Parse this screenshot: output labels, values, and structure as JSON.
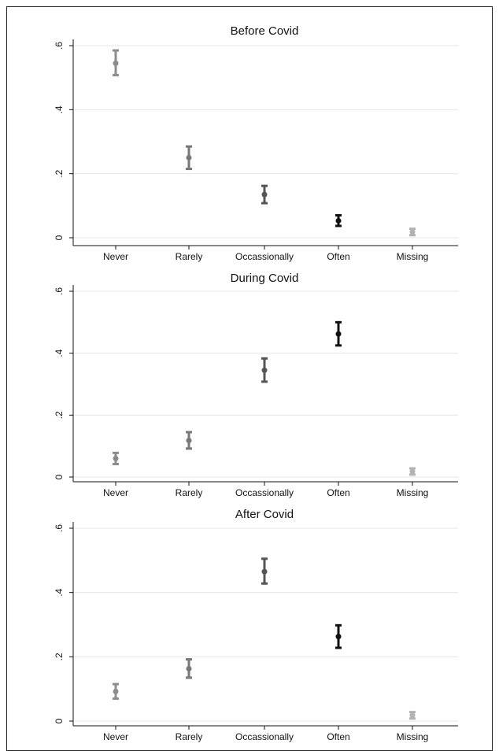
{
  "chart_data": [
    {
      "type": "scatter",
      "title": "Before Covid",
      "categories": [
        "Never",
        "Rarely",
        "Occassionally",
        "Often",
        "Missing"
      ],
      "yticks": [
        ".6",
        ".4",
        ".2",
        "0"
      ],
      "ylim": [
        0,
        0.6
      ],
      "grid": true,
      "points": [
        {
          "category": "Never",
          "value": 0.545,
          "lower": 0.508,
          "upper": 0.585,
          "color": "#8c8c8c"
        },
        {
          "category": "Rarely",
          "value": 0.25,
          "lower": 0.215,
          "upper": 0.285,
          "color": "#777777"
        },
        {
          "category": "Occassionally",
          "value": 0.135,
          "lower": 0.108,
          "upper": 0.162,
          "color": "#555555"
        },
        {
          "category": "Often",
          "value": 0.053,
          "lower": 0.037,
          "upper": 0.07,
          "color": "#111111"
        },
        {
          "category": "Missing",
          "value": 0.018,
          "lower": 0.008,
          "upper": 0.028,
          "color": "#b3b3b3"
        }
      ]
    },
    {
      "type": "scatter",
      "title": "During Covid",
      "categories": [
        "Never",
        "Rarely",
        "Occassionally",
        "Often",
        "Missing"
      ],
      "yticks": [
        ".6",
        ".4",
        ".2",
        "0"
      ],
      "ylim": [
        0,
        0.6
      ],
      "grid": true,
      "points": [
        {
          "category": "Never",
          "value": 0.06,
          "lower": 0.042,
          "upper": 0.078,
          "color": "#8c8c8c"
        },
        {
          "category": "Rarely",
          "value": 0.118,
          "lower": 0.092,
          "upper": 0.145,
          "color": "#777777"
        },
        {
          "category": "Occassionally",
          "value": 0.345,
          "lower": 0.308,
          "upper": 0.383,
          "color": "#555555"
        },
        {
          "category": "Often",
          "value": 0.462,
          "lower": 0.425,
          "upper": 0.5,
          "color": "#111111"
        },
        {
          "category": "Missing",
          "value": 0.018,
          "lower": 0.008,
          "upper": 0.028,
          "color": "#b3b3b3"
        }
      ]
    },
    {
      "type": "scatter",
      "title": "After Covid",
      "categories": [
        "Never",
        "Rarely",
        "Occassionally",
        "Often",
        "Missing"
      ],
      "yticks": [
        ".6",
        ".4",
        ".2",
        "0"
      ],
      "ylim": [
        0,
        0.6
      ],
      "grid": true,
      "points": [
        {
          "category": "Never",
          "value": 0.092,
          "lower": 0.07,
          "upper": 0.115,
          "color": "#8c8c8c"
        },
        {
          "category": "Rarely",
          "value": 0.163,
          "lower": 0.135,
          "upper": 0.192,
          "color": "#777777"
        },
        {
          "category": "Occassionally",
          "value": 0.465,
          "lower": 0.428,
          "upper": 0.505,
          "color": "#555555"
        },
        {
          "category": "Often",
          "value": 0.263,
          "lower": 0.228,
          "upper": 0.298,
          "color": "#111111"
        },
        {
          "category": "Missing",
          "value": 0.018,
          "lower": 0.008,
          "upper": 0.028,
          "color": "#b3b3b3"
        }
      ]
    }
  ]
}
